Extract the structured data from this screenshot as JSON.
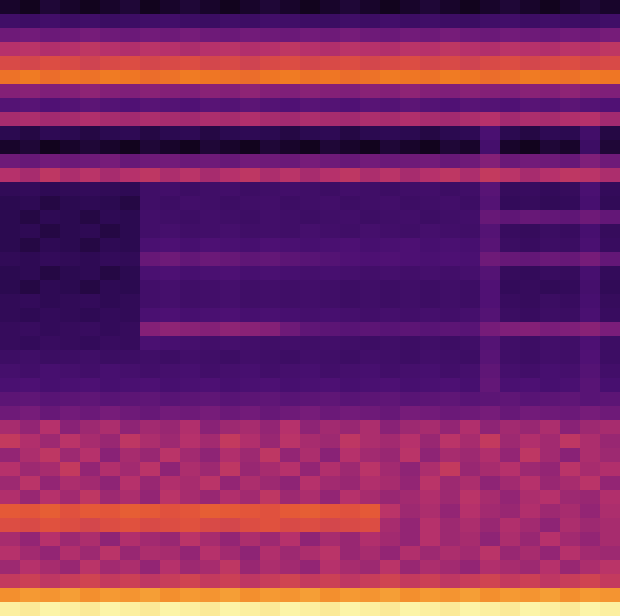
{
  "chart_data": {
    "type": "heatmap",
    "tick_labels": false,
    "cells": [
      [
        15,
        14,
        16,
        15,
        14,
        15,
        16,
        14,
        15,
        16,
        15,
        14,
        15,
        16,
        15,
        14,
        15,
        16,
        15,
        14,
        15,
        16,
        15,
        14,
        15,
        16,
        15,
        14,
        15,
        16,
        15
      ],
      [
        26,
        25,
        27,
        25,
        26,
        24,
        25,
        26,
        27,
        25,
        24,
        26,
        25,
        27,
        26,
        25,
        24,
        26,
        25,
        27,
        25,
        26,
        25,
        24,
        26,
        27,
        25,
        26,
        25,
        24,
        26
      ],
      [
        40,
        41,
        39,
        40,
        42,
        40,
        39,
        41,
        40,
        42,
        40,
        39,
        41,
        40,
        39,
        41,
        40,
        42,
        40,
        39,
        41,
        40,
        42,
        40,
        39,
        41,
        40,
        39,
        41,
        40,
        42
      ],
      [
        55,
        56,
        54,
        55,
        57,
        55,
        54,
        56,
        55,
        53,
        55,
        56,
        54,
        55,
        57,
        55,
        54,
        56,
        55,
        54,
        56,
        55,
        57,
        55,
        54,
        56,
        55,
        54,
        56,
        55,
        57
      ],
      [
        63,
        62,
        64,
        63,
        61,
        63,
        64,
        62,
        63,
        64,
        62,
        63,
        61,
        63,
        64,
        62,
        63,
        64,
        62,
        63,
        64,
        62,
        63,
        61,
        63,
        64,
        62,
        63,
        64,
        62,
        63
      ],
      [
        72,
        74,
        71,
        73,
        72,
        74,
        73,
        71,
        72,
        74,
        73,
        72,
        71,
        73,
        74,
        72,
        73,
        71,
        72,
        74,
        73,
        72,
        74,
        73,
        71,
        72,
        74,
        73,
        72,
        74,
        73
      ],
      [
        45,
        46,
        44,
        45,
        47,
        45,
        44,
        46,
        45,
        44,
        46,
        45,
        47,
        45,
        44,
        46,
        45,
        44,
        46,
        45,
        47,
        45,
        44,
        46,
        45,
        44,
        46,
        45,
        47,
        45,
        44
      ],
      [
        33,
        34,
        32,
        33,
        35,
        33,
        32,
        34,
        33,
        32,
        34,
        33,
        35,
        33,
        32,
        34,
        33,
        32,
        34,
        33,
        35,
        33,
        32,
        34,
        33,
        32,
        34,
        33,
        35,
        33,
        32
      ],
      [
        52,
        53,
        51,
        52,
        54,
        52,
        51,
        53,
        52,
        51,
        53,
        52,
        54,
        52,
        51,
        53,
        52,
        51,
        53,
        52,
        54,
        52,
        51,
        53,
        55,
        51,
        53,
        52,
        54,
        55,
        51
      ],
      [
        18,
        17,
        19,
        18,
        17,
        18,
        19,
        17,
        18,
        19,
        17,
        18,
        19,
        18,
        17,
        18,
        19,
        17,
        18,
        19,
        18,
        17,
        18,
        19,
        30,
        18,
        17,
        19,
        18,
        27,
        17
      ],
      [
        15,
        16,
        14,
        15,
        16,
        15,
        14,
        16,
        15,
        14,
        16,
        15,
        14,
        16,
        15,
        14,
        16,
        15,
        14,
        16,
        15,
        14,
        16,
        15,
        28,
        15,
        14,
        16,
        15,
        25,
        16
      ],
      [
        40,
        38,
        41,
        39,
        40,
        42,
        38,
        40,
        41,
        39,
        40,
        38,
        41,
        40,
        39,
        42,
        40,
        38,
        41,
        39,
        40,
        41,
        38,
        40,
        45,
        39,
        41,
        40,
        38,
        44,
        40
      ],
      [
        55,
        52,
        57,
        53,
        56,
        52,
        55,
        57,
        53,
        56,
        52,
        55,
        57,
        53,
        56,
        52,
        55,
        57,
        53,
        56,
        52,
        55,
        57,
        53,
        58,
        56,
        52,
        55,
        57,
        56,
        53
      ],
      [
        20,
        21,
        19,
        20,
        21,
        20,
        19,
        26,
        27,
        25,
        26,
        27,
        25,
        26,
        27,
        26,
        25,
        27,
        26,
        25,
        26,
        27,
        25,
        26,
        34,
        22,
        23,
        21,
        22,
        30,
        21
      ],
      [
        18,
        19,
        17,
        18,
        19,
        18,
        17,
        26,
        25,
        27,
        26,
        25,
        26,
        27,
        25,
        26,
        27,
        25,
        26,
        27,
        25,
        26,
        27,
        25,
        33,
        21,
        22,
        20,
        21,
        29,
        20
      ],
      [
        18,
        17,
        19,
        18,
        17,
        19,
        18,
        27,
        26,
        25,
        27,
        26,
        25,
        27,
        26,
        25,
        26,
        27,
        25,
        26,
        27,
        25,
        26,
        27,
        38,
        36,
        38,
        37,
        36,
        40,
        37
      ],
      [
        18,
        19,
        17,
        18,
        19,
        17,
        18,
        27,
        28,
        26,
        27,
        28,
        26,
        27,
        26,
        28,
        27,
        26,
        28,
        27,
        26,
        28,
        27,
        26,
        33,
        23,
        22,
        24,
        23,
        29,
        22
      ],
      [
        18,
        17,
        19,
        18,
        17,
        19,
        18,
        30,
        31,
        29,
        31,
        30,
        29,
        31,
        30,
        29,
        30,
        31,
        29,
        30,
        31,
        29,
        30,
        29,
        34,
        24,
        23,
        25,
        24,
        30,
        23
      ],
      [
        20,
        19,
        21,
        20,
        19,
        21,
        20,
        38,
        40,
        37,
        39,
        38,
        36,
        37,
        35,
        34,
        33,
        32,
        31,
        32,
        31,
        30,
        31,
        30,
        40,
        38,
        37,
        39,
        38,
        42,
        37
      ],
      [
        18,
        19,
        17,
        18,
        19,
        17,
        18,
        30,
        31,
        29,
        30,
        31,
        29,
        30,
        29,
        28,
        29,
        28,
        27,
        28,
        27,
        28,
        27,
        28,
        33,
        22,
        21,
        23,
        22,
        29,
        21
      ],
      [
        18,
        17,
        19,
        18,
        17,
        19,
        18,
        27,
        28,
        26,
        27,
        28,
        26,
        27,
        26,
        27,
        26,
        25,
        26,
        25,
        26,
        25,
        26,
        25,
        32,
        21,
        22,
        20,
        21,
        28,
        20
      ],
      [
        20,
        21,
        19,
        20,
        21,
        19,
        20,
        27,
        28,
        26,
        27,
        28,
        26,
        27,
        26,
        27,
        26,
        25,
        26,
        25,
        26,
        25,
        26,
        25,
        32,
        23,
        22,
        24,
        23,
        29,
        22
      ],
      [
        20,
        19,
        21,
        20,
        19,
        21,
        20,
        30,
        31,
        29,
        30,
        31,
        29,
        30,
        29,
        28,
        29,
        28,
        27,
        28,
        27,
        28,
        27,
        28,
        33,
        24,
        23,
        25,
        24,
        30,
        23
      ],
      [
        22,
        23,
        21,
        22,
        23,
        21,
        22,
        45,
        47,
        46,
        45,
        47,
        46,
        45,
        40,
        36,
        35,
        34,
        35,
        34,
        35,
        34,
        35,
        34,
        42,
        44,
        45,
        43,
        44,
        46,
        43
      ],
      [
        22,
        21,
        23,
        22,
        21,
        23,
        22,
        30,
        29,
        28,
        27,
        28,
        27,
        26,
        27,
        26,
        27,
        26,
        25,
        26,
        25,
        26,
        25,
        26,
        33,
        26,
        25,
        27,
        26,
        31,
        25
      ],
      [
        25,
        26,
        24,
        25,
        26,
        24,
        25,
        26,
        25,
        27,
        26,
        25,
        27,
        26,
        25,
        27,
        26,
        25,
        27,
        26,
        25,
        27,
        26,
        25,
        34,
        26,
        25,
        27,
        26,
        32,
        25
      ],
      [
        28,
        27,
        29,
        28,
        27,
        29,
        28,
        27,
        28,
        29,
        27,
        28,
        29,
        27,
        28,
        29,
        27,
        28,
        29,
        27,
        28,
        29,
        27,
        28,
        36,
        28,
        27,
        29,
        28,
        33,
        27
      ],
      [
        30,
        31,
        29,
        30,
        31,
        29,
        30,
        31,
        29,
        30,
        31,
        29,
        30,
        31,
        29,
        30,
        31,
        29,
        30,
        31,
        29,
        30,
        31,
        29,
        37,
        30,
        31,
        29,
        30,
        34,
        29
      ],
      [
        35,
        36,
        34,
        35,
        36,
        34,
        35,
        36,
        34,
        35,
        36,
        34,
        35,
        36,
        34,
        35,
        36,
        34,
        35,
        36,
        34,
        35,
        36,
        34,
        35,
        36,
        34,
        35,
        36,
        34,
        35
      ],
      [
        40,
        42,
        38,
        41,
        39,
        42,
        40,
        38,
        41,
        40,
        42,
        39,
        41,
        38,
        40,
        42,
        39,
        41,
        40,
        38,
        42,
        41,
        39,
        40,
        42,
        38,
        41,
        40,
        39,
        42,
        40
      ],
      [
        52,
        48,
        55,
        46,
        50,
        53,
        47,
        51,
        49,
        54,
        46,
        50,
        52,
        48,
        55,
        47,
        51,
        49,
        53,
        46,
        50,
        52,
        48,
        54,
        47,
        51,
        49,
        53,
        46,
        50,
        52
      ],
      [
        58,
        54,
        50,
        56,
        52,
        49,
        57,
        53,
        50,
        55,
        51,
        58,
        54,
        49,
        56,
        52,
        50,
        57,
        53,
        51,
        55,
        49,
        56,
        52,
        58,
        50,
        54,
        51,
        57,
        53,
        49
      ],
      [
        48,
        53,
        57,
        50,
        55,
        46,
        52,
        49,
        56,
        51,
        47,
        54,
        50,
        57,
        48,
        53,
        46,
        55,
        51,
        49,
        56,
        47,
        52,
        50,
        54,
        48,
        57,
        51,
        46,
        53,
        50
      ],
      [
        55,
        50,
        52,
        58,
        48,
        54,
        51,
        56,
        47,
        53,
        50,
        57,
        49,
        52,
        55,
        48,
        54,
        50,
        56,
        51,
        47,
        53,
        58,
        49,
        52,
        55,
        50,
        48,
        56,
        52,
        54
      ],
      [
        50,
        56,
        48,
        53,
        51,
        47,
        55,
        49,
        54,
        52,
        56,
        48,
        53,
        50,
        47,
        55,
        51,
        49,
        54,
        52,
        48,
        56,
        50,
        53,
        47,
        51,
        55,
        49,
        52,
        56,
        48
      ],
      [
        54,
        49,
        55,
        51,
        57,
        50,
        53,
        48,
        56,
        52,
        49,
        54,
        51,
        57,
        50,
        53,
        48,
        55,
        52,
        49,
        51,
        54,
        50,
        56,
        52,
        48,
        53,
        55,
        50,
        49,
        54
      ],
      [
        67,
        66,
        68,
        65,
        67,
        66,
        68,
        67,
        65,
        66,
        68,
        67,
        66,
        65,
        67,
        68,
        66,
        65,
        67,
        56,
        50,
        53,
        48,
        55,
        51,
        49,
        54,
        50,
        52,
        48,
        53
      ],
      [
        64,
        63,
        65,
        64,
        62,
        64,
        65,
        63,
        64,
        65,
        63,
        62,
        64,
        65,
        63,
        64,
        62,
        63,
        64,
        52,
        48,
        55,
        50,
        53,
        49,
        54,
        51,
        47,
        53,
        50,
        52
      ],
      [
        52,
        48,
        55,
        50,
        53,
        47,
        54,
        51,
        49,
        56,
        52,
        48,
        53,
        50,
        55,
        47,
        52,
        49,
        54,
        51,
        48,
        55,
        50,
        52,
        47,
        53,
        49,
        55,
        51,
        48,
        52
      ],
      [
        55,
        51,
        48,
        54,
        50,
        56,
        49,
        53,
        52,
        48,
        55,
        51,
        47,
        54,
        50,
        53,
        56,
        49,
        52,
        48,
        54,
        50,
        53,
        51,
        56,
        49,
        52,
        48,
        55,
        51,
        50
      ],
      [
        50,
        55,
        52,
        49,
        56,
        51,
        53,
        48,
        55,
        50,
        52,
        57,
        49,
        53,
        51,
        48,
        55,
        52,
        50,
        56,
        49,
        53,
        51,
        48,
        54,
        52,
        50,
        55,
        49,
        53,
        56
      ],
      [
        58,
        60,
        57,
        59,
        61,
        58,
        60,
        57,
        59,
        61,
        58,
        60,
        57,
        59,
        61,
        58,
        60,
        57,
        59,
        61,
        58,
        60,
        57,
        59,
        61,
        58,
        60,
        57,
        59,
        61,
        58
      ],
      [
        78,
        80,
        79,
        81,
        78,
        80,
        79,
        81,
        78,
        80,
        79,
        81,
        78,
        80,
        79,
        81,
        78,
        80,
        79,
        81,
        78,
        80,
        79,
        81,
        78,
        80,
        79,
        81,
        78,
        80,
        79
      ],
      [
        96,
        95,
        97,
        96,
        95,
        97,
        96,
        95,
        97,
        96,
        95,
        97,
        96,
        95,
        97,
        96,
        95,
        97,
        96,
        95,
        97,
        96,
        95,
        97,
        96,
        95,
        97,
        96,
        95,
        97,
        96
      ]
    ]
  }
}
